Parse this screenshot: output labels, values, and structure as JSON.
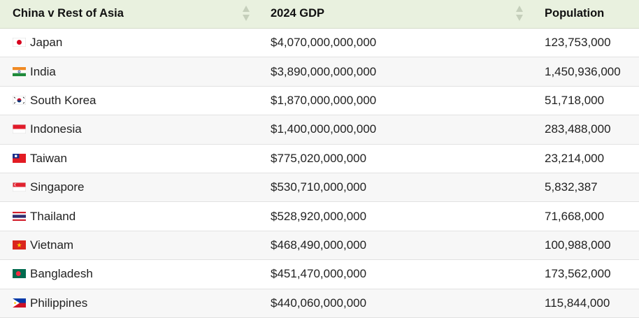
{
  "table": {
    "headers": [
      "China v Rest of Asia",
      "2024 GDP",
      "Population"
    ],
    "rows": [
      {
        "country": "Japan",
        "flag": "flag-japan",
        "gdp": "$4,070,000,000,000",
        "population": "123,753,000"
      },
      {
        "country": "India",
        "flag": "flag-india",
        "gdp": "$3,890,000,000,000",
        "population": "1,450,936,000"
      },
      {
        "country": "South Korea",
        "flag": "flag-south-korea",
        "gdp": "$1,870,000,000,000",
        "population": "51,718,000"
      },
      {
        "country": "Indonesia",
        "flag": "flag-indonesia",
        "gdp": "$1,400,000,000,000",
        "population": "283,488,000"
      },
      {
        "country": "Taiwan",
        "flag": "flag-taiwan",
        "gdp": "$775,020,000,000",
        "population": "23,214,000"
      },
      {
        "country": "Singapore",
        "flag": "flag-singapore",
        "gdp": "$530,710,000,000",
        "population": "5,832,387"
      },
      {
        "country": "Thailand",
        "flag": "flag-thailand",
        "gdp": "$528,920,000,000",
        "population": "71,668,000"
      },
      {
        "country": "Vietnam",
        "flag": "flag-vietnam",
        "gdp": "$468,490,000,000",
        "population": "100,988,000"
      },
      {
        "country": "Bangladesh",
        "flag": "flag-bangladesh",
        "gdp": "$451,470,000,000",
        "population": "173,562,000"
      },
      {
        "country": "Philippines",
        "flag": "flag-philippines",
        "gdp": "$440,060,000,000",
        "population": "115,844,000"
      }
    ]
  },
  "colors": {
    "header_bg": "#e9f1df",
    "sort_arrow": "#c5cfbb",
    "row_alt_bg": "#f7f7f7",
    "row_border": "#e2e2e2"
  }
}
